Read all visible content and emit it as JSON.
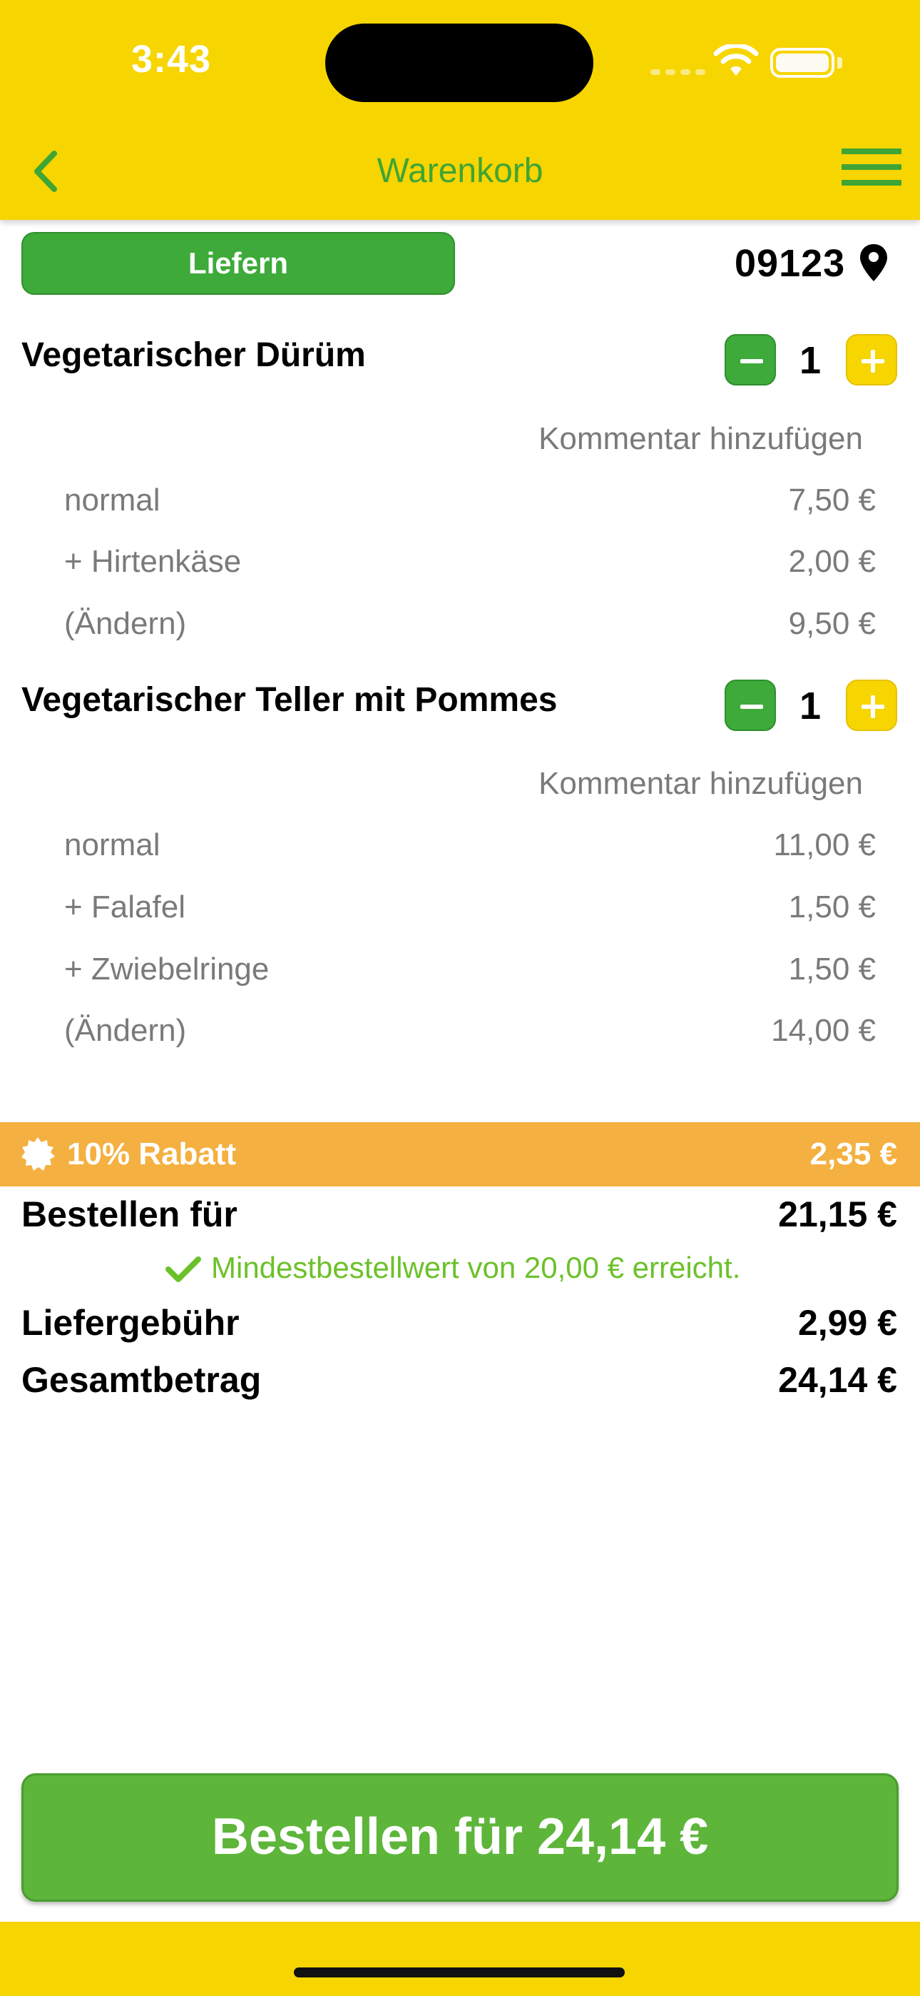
{
  "status_bar": {
    "time": "3:43"
  },
  "header": {
    "title": "Warenkorb",
    "back_icon": "chevron-left-icon",
    "menu_icon": "hamburger-menu-icon"
  },
  "delivery": {
    "mode_label": "Liefern",
    "postal_code": "09123"
  },
  "cart": {
    "items": [
      {
        "name": "Vegetarischer Dürüm",
        "quantity": "1",
        "comment_label": "Kommentar hinzufügen",
        "lines": [
          {
            "label": "normal",
            "price": "7,50 €"
          },
          {
            "label": "+ Hirtenkäse",
            "price": "2,00 €"
          },
          {
            "label": "(Ändern)",
            "price": "9,50 €"
          }
        ]
      },
      {
        "name": "Vegetarischer Teller mit Pommes",
        "quantity": "1",
        "comment_label": "Kommentar hinzufügen",
        "lines": [
          {
            "label": "normal",
            "price": "11,00 €"
          },
          {
            "label": "+ Falafel",
            "price": "1,50 €"
          },
          {
            "label": "+ Zwiebelringe",
            "price": "1,50 €"
          },
          {
            "label": "(Ändern)",
            "price": "14,00 €"
          }
        ]
      }
    ]
  },
  "discount": {
    "label": "10% Rabatt",
    "amount": "2,35 €"
  },
  "summary": {
    "subtotal_label": "Bestellen für",
    "subtotal_value": "21,15 €",
    "minimum_notice": "Mindestbestellwert von 20,00 € erreicht.",
    "delivery_fee_label": "Liefergebühr",
    "delivery_fee_value": "2,99 €",
    "total_label": "Gesamtbetrag",
    "total_value": "24,14 €"
  },
  "order_button": {
    "label": "Bestellen für 24,14 €"
  },
  "colors": {
    "brand_yellow": "#F7D500",
    "brand_green": "#3DAA3A",
    "discount_orange": "#F4B040",
    "success_green": "#6CC12A"
  }
}
